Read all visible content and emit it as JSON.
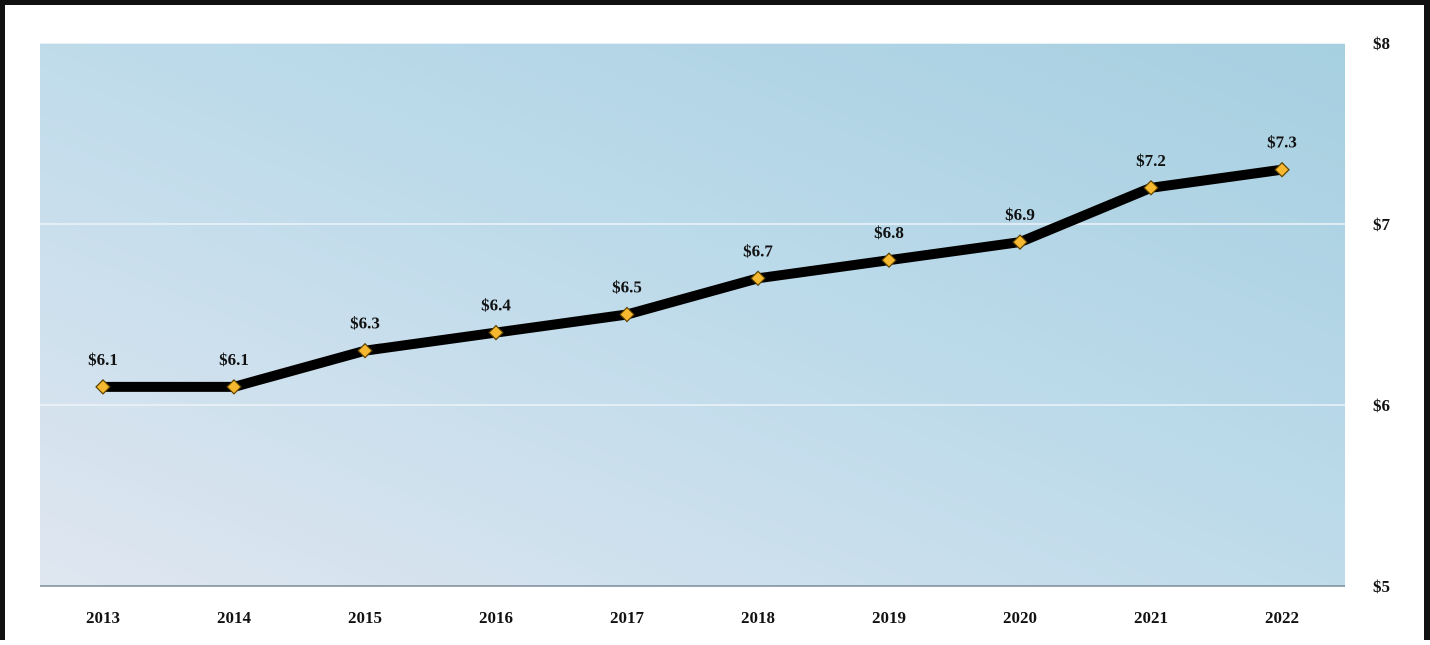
{
  "chart_data": {
    "type": "line",
    "title": "",
    "xlabel": "",
    "ylabel": "",
    "categories": [
      "2013",
      "2014",
      "2015",
      "2016",
      "2017",
      "2018",
      "2019",
      "2020",
      "2021",
      "2022"
    ],
    "series": [
      {
        "values": [
          6.1,
          6.1,
          6.3,
          6.4,
          6.5,
          6.7,
          6.8,
          6.9,
          7.2,
          7.3
        ],
        "data_labels": [
          "$6.1",
          "$6.1",
          "$6.3",
          "$6.4",
          "$6.5",
          "$6.7",
          "$6.8",
          "$6.9",
          "$7.2",
          "$7.3"
        ]
      }
    ],
    "ylim": [
      5,
      8
    ],
    "y_ticks": [
      5,
      6,
      7,
      8
    ],
    "y_tick_labels": [
      "$5",
      "$6",
      "$7",
      "$8"
    ],
    "y_axis_side": "right",
    "grid": true,
    "legend": "none",
    "line_color": "#000000",
    "marker": "diamond",
    "marker_color": "#f5b82e",
    "plot_background": [
      "#dfe6f0",
      "#a8d1e1"
    ]
  }
}
